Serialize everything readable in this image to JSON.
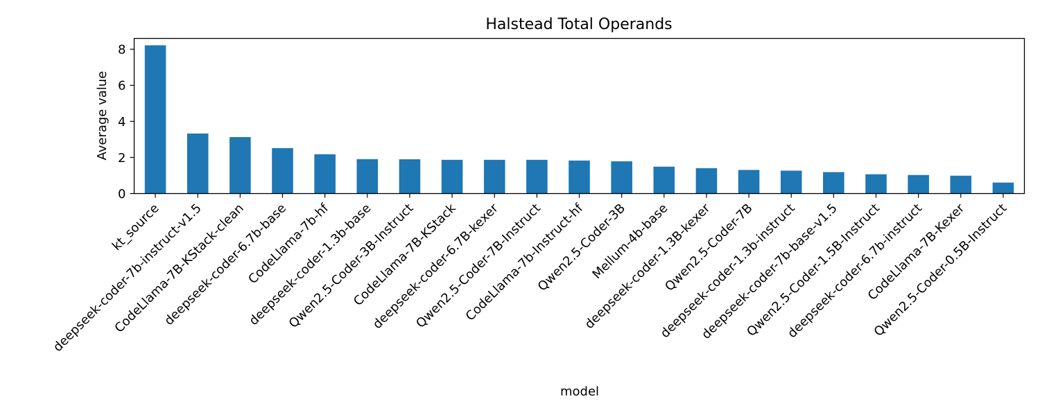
{
  "chart_data": {
    "type": "bar",
    "title": "Halstead Total Operands",
    "xlabel": "model",
    "ylabel": "Average value",
    "ylim": [
      0,
      8.6
    ],
    "yticks": [
      0,
      2,
      4,
      6,
      8
    ],
    "grid": false,
    "bar_color": "#1f77b4",
    "categories": [
      "kt_source",
      "deepseek-coder-7b-instruct-v1.5",
      "CodeLlama-7B-KStack-clean",
      "deepseek-coder-6.7b-base",
      "CodeLlama-7b-hf",
      "deepseek-coder-1.3b-base",
      "Qwen2.5-Coder-3B-Instruct",
      "CodeLlama-7B-KStack",
      "deepseek-coder-6.7B-kexer",
      "Qwen2.5-Coder-7B-Instruct",
      "CodeLlama-7b-Instruct-hf",
      "Qwen2.5-Coder-3B",
      "Mellum-4b-base",
      "deepseek-coder-1.3B-kexer",
      "Qwen2.5-Coder-7B",
      "deepseek-coder-1.3b-instruct",
      "deepseek-coder-7b-base-v1.5",
      "Qwen2.5-Coder-1.5B-Instruct",
      "deepseek-coder-6.7b-instruct",
      "CodeLlama-7B-Kexer",
      "Qwen2.5-Coder-0.5B-Instruct"
    ],
    "values": [
      8.22,
      3.33,
      3.13,
      2.52,
      2.18,
      1.91,
      1.9,
      1.87,
      1.87,
      1.87,
      1.83,
      1.79,
      1.49,
      1.41,
      1.31,
      1.27,
      1.19,
      1.07,
      1.03,
      0.99,
      0.61
    ]
  }
}
